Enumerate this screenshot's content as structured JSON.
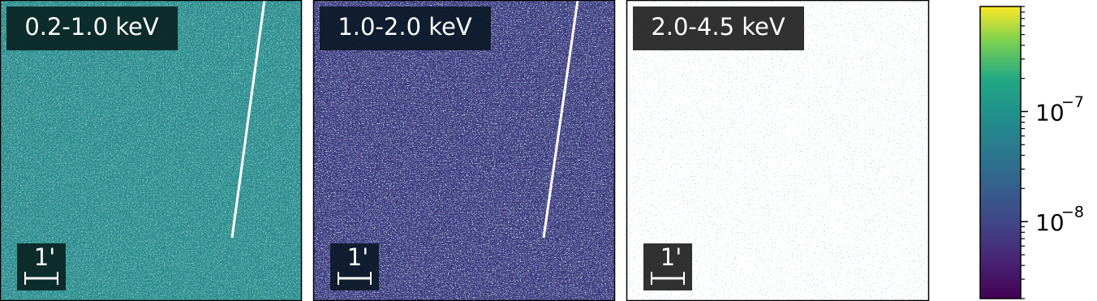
{
  "panels": [
    {
      "label": "0.2-1.0 keV",
      "scale_label": "1'"
    },
    {
      "label": "1.0-2.0 keV",
      "scale_label": "1'"
    },
    {
      "label": "2.0-4.5 keV",
      "scale_label": "1'"
    }
  ],
  "colorbar": {
    "log": true,
    "lim": [
      2e-09,
      9e-07
    ],
    "ticks": [
      {
        "value": 1e-08,
        "base": "10",
        "exponent": "−8"
      },
      {
        "value": 1e-07,
        "base": "10",
        "exponent": "−7"
      }
    ]
  }
}
